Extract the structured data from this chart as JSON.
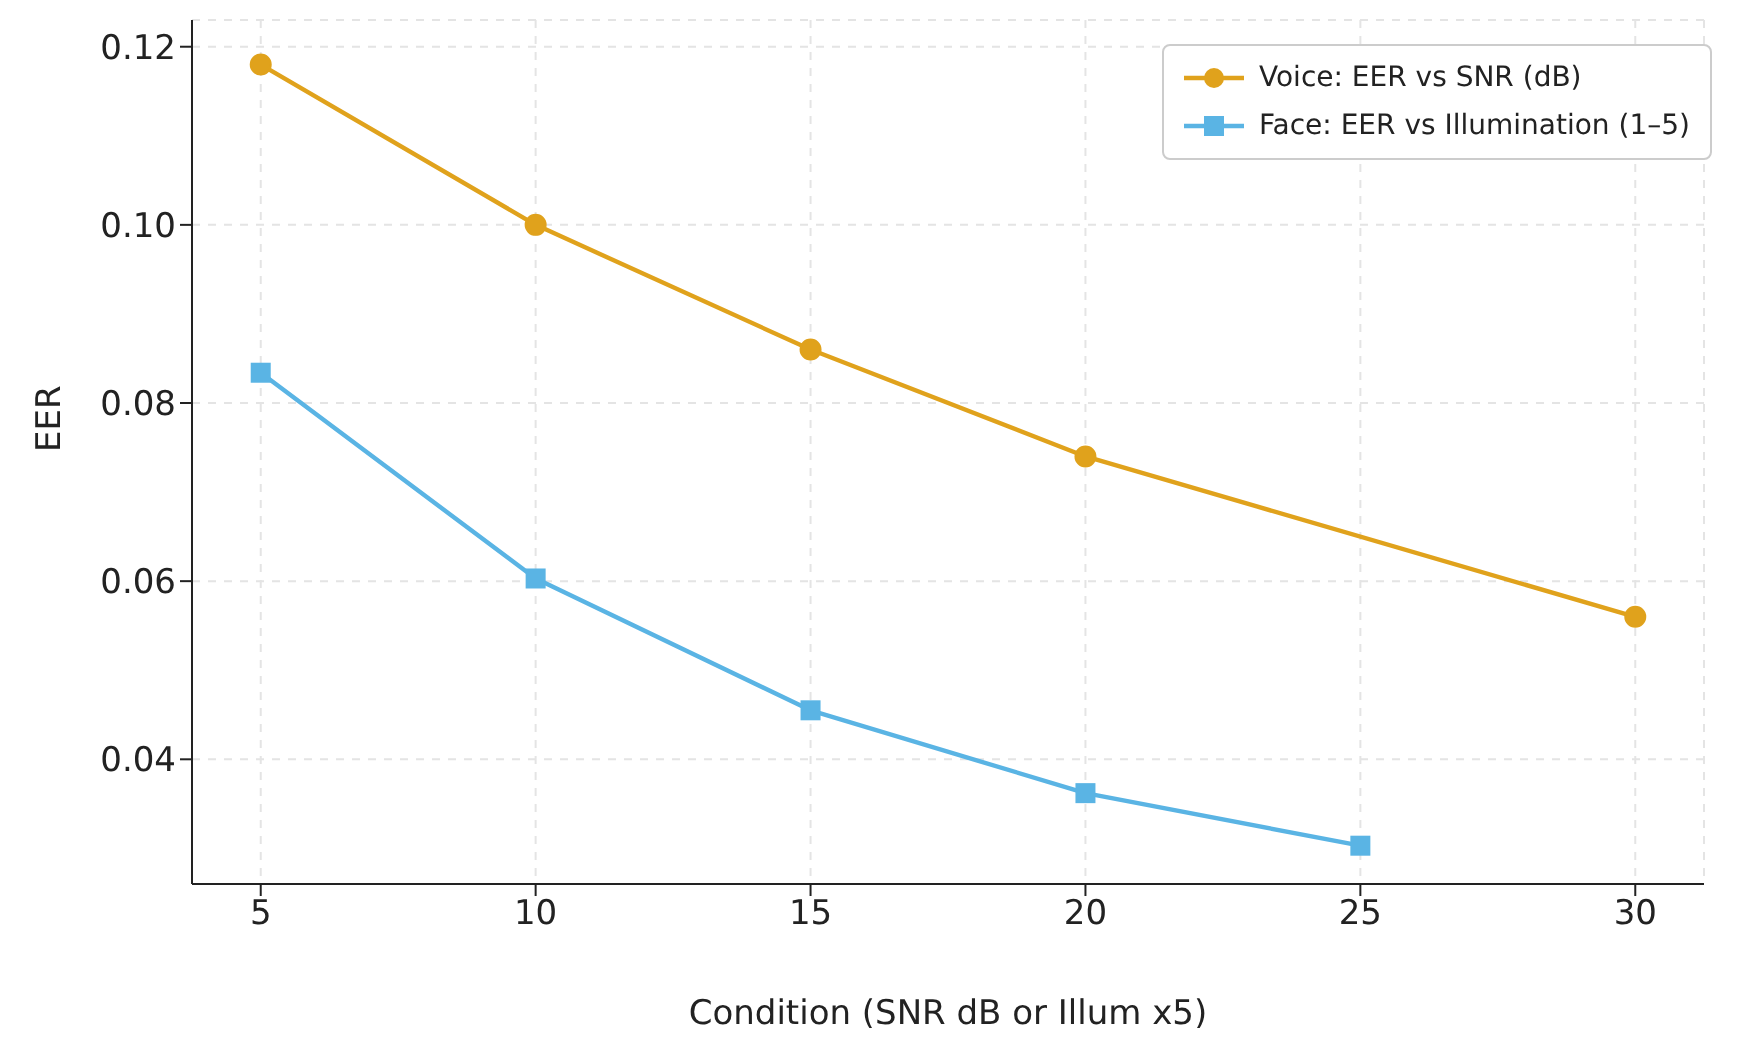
{
  "chart_data": {
    "type": "line",
    "xlabel": "Condition (SNR dB or Illum x5)",
    "ylabel": "EER",
    "xlim": [
      3.75,
      31.25
    ],
    "xticks": [
      5,
      10,
      15,
      20,
      25,
      30
    ],
    "ylim": [
      0.026,
      0.123
    ],
    "yticks": [
      0.04,
      0.06,
      0.08,
      {
        "value": 0.1,
        "label": "0.10"
      },
      0.12
    ],
    "grid": true,
    "legend": "top right",
    "line_style": "solid",
    "series": [
      {
        "name": "Voice: EER vs SNR (dB)",
        "color": "#e0a21c",
        "marker": "circle",
        "x": [
          5,
          10,
          15,
          20,
          30
        ],
        "values": [
          0.118,
          0.1,
          0.086,
          0.074,
          0.056
        ]
      },
      {
        "name": "Face: EER vs Illumination (1–5)",
        "color": "#5ab4e4",
        "marker": "square",
        "x": [
          5,
          10,
          15,
          20,
          25
        ],
        "values": [
          0.0834,
          0.0603,
          0.0455,
          0.0362,
          0.0303
        ]
      }
    ]
  }
}
